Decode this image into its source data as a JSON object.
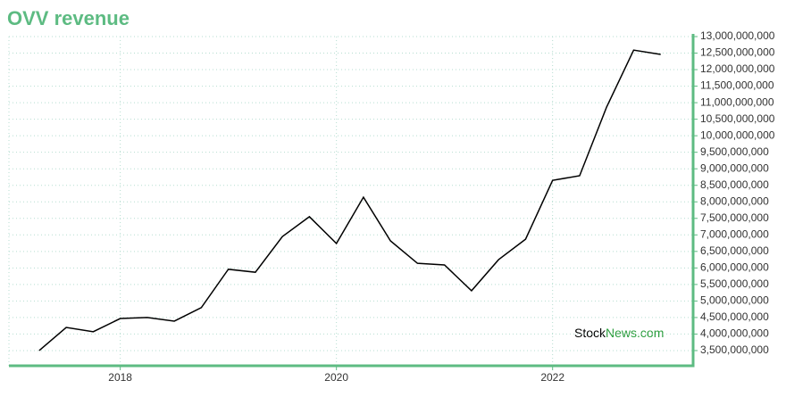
{
  "chart_data": {
    "type": "line",
    "title": "OVV revenue",
    "watermark": [
      "Stock",
      "News.com"
    ],
    "x": [
      2017.25,
      2017.5,
      2017.75,
      2018.0,
      2018.25,
      2018.5,
      2018.75,
      2019.0,
      2019.25,
      2019.5,
      2019.75,
      2020.0,
      2020.25,
      2020.5,
      2020.75,
      2021.0,
      2021.25,
      2021.5,
      2021.75,
      2022.0,
      2022.25,
      2022.5,
      2022.75,
      2023.0
    ],
    "series": [
      {
        "name": "OVV revenue",
        "color": "#000000",
        "values": [
          3500000000,
          4200000000,
          4070000000,
          4470000000,
          4500000000,
          4390000000,
          4800000000,
          5960000000,
          5870000000,
          6950000000,
          7550000000,
          6740000000,
          8140000000,
          6820000000,
          6140000000,
          6090000000,
          5310000000,
          6250000000,
          6870000000,
          8650000000,
          8790000000,
          10870000000,
          12590000000,
          12460000000
        ]
      }
    ],
    "xlim": [
      2016.97,
      2023.3
    ],
    "xticks": [
      2018,
      2020,
      2022
    ],
    "ylim": [
      3040000000,
      13000000000
    ],
    "yticks": [
      {
        "value": 3500000000,
        "label": "3,500,000,000"
      },
      {
        "value": 4000000000,
        "label": "4,000,000,000"
      },
      {
        "value": 4500000000,
        "label": "4,500,000,000"
      },
      {
        "value": 5000000000,
        "label": "5,000,000,000"
      },
      {
        "value": 5500000000,
        "label": "5,500,000,000"
      },
      {
        "value": 6000000000,
        "label": "6,000,000,000"
      },
      {
        "value": 6500000000,
        "label": "6,500,000,000"
      },
      {
        "value": 7000000000,
        "label": "7,000,000,000"
      },
      {
        "value": 7500000000,
        "label": "7,500,000,000"
      },
      {
        "value": 8000000000,
        "label": "8,000,000,000"
      },
      {
        "value": 8500000000,
        "label": "8,500,000,000"
      },
      {
        "value": 9000000000,
        "label": "9,000,000,000"
      },
      {
        "value": 9500000000,
        "label": "9,500,000,000"
      },
      {
        "value": 10000000000,
        "label": "10,000,000,000"
      },
      {
        "value": 10500000000,
        "label": "10,500,000,000"
      },
      {
        "value": 11000000000,
        "label": "11,000,000,000"
      },
      {
        "value": 11500000000,
        "label": "11,500,000,000"
      },
      {
        "value": 12000000000,
        "label": "12,000,000,000"
      },
      {
        "value": 12500000000,
        "label": "12,500,000,000"
      },
      {
        "value": 13000000000,
        "label": "13,000,000,000"
      }
    ],
    "grid": true,
    "axis_color": "#5dbb82"
  }
}
